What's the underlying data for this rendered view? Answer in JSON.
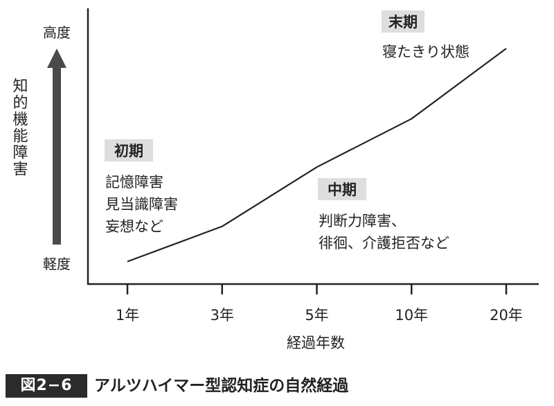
{
  "chart_data": {
    "type": "line",
    "x": [
      "1年",
      "3年",
      "5年",
      "10年",
      "20年"
    ],
    "series": [
      {
        "values": [
          0.03,
          0.19,
          0.46,
          0.68,
          1.0
        ]
      }
    ],
    "xlabel": "経過年数",
    "ylabel": "知的機能障害",
    "y_top_label": "高度",
    "y_bottom_label": "軽度",
    "ylim": [
      0,
      1
    ],
    "grid": false,
    "annotations": [
      {
        "title": "初期",
        "lines": [
          "記憶障害",
          "見当識障害",
          "妄想など"
        ]
      },
      {
        "title": "中期",
        "lines": [
          "判断力障害、",
          "徘徊、介護拒否など"
        ]
      },
      {
        "title": "末期",
        "lines": [
          "寝たきり状態"
        ]
      }
    ]
  },
  "caption": {
    "figure_number": "図2−6",
    "title": "アルツハイマー型認知症の自然経過"
  },
  "colors": {
    "line": "#222222",
    "arrow": "#4a4a4a",
    "tag_background": "#dedede",
    "caption_background": "#2b2b2b"
  }
}
